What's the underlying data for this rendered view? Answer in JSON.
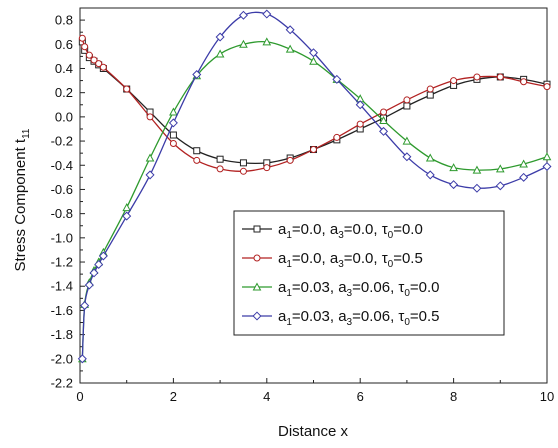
{
  "chart_data": {
    "type": "line",
    "xlabel": "Distance x",
    "ylabel": "Stress Component t",
    "ylabel_sub": "11",
    "xlim": [
      0,
      10
    ],
    "ylim": [
      -2.2,
      0.9
    ],
    "xticks": [
      0,
      2,
      4,
      6,
      8,
      10
    ],
    "xtick_labels": [
      "0",
      "2",
      "4",
      "6",
      "8",
      "10"
    ],
    "yticks": [
      0.8,
      0.6,
      0.4,
      0.2,
      0.0,
      -0.2,
      -0.4,
      -0.6,
      -0.8,
      -1.0,
      -1.2,
      -1.4,
      -1.6,
      -1.8,
      -2.0,
      -2.2
    ],
    "ytick_labels": [
      "0.8",
      "0.6",
      "0.4",
      "0.2",
      "0.0",
      "-0.2",
      "-0.4",
      "-0.6",
      "-0.8",
      "-1.0",
      "-1.2",
      "-1.4",
      "-1.6",
      "-1.8",
      "-2.0",
      "-2.2"
    ],
    "grid": false,
    "legend_position": "bottom-right",
    "series": [
      {
        "name": "a1=0.0, a3=0.0, τ0=0.0",
        "legend": {
          "a1": "0.0",
          "a3": "0.0",
          "t0": "0.0"
        },
        "color": "#222222",
        "marker": "square",
        "x": [
          0.05,
          0.1,
          0.2,
          0.3,
          0.4,
          0.5,
          1.0,
          1.5,
          2.0,
          2.5,
          3.0,
          3.5,
          4.0,
          4.5,
          5.0,
          5.5,
          6.0,
          6.5,
          7.0,
          7.5,
          8.0,
          8.5,
          9.0,
          9.5,
          10.0
        ],
        "y": [
          0.62,
          0.55,
          0.49,
          0.46,
          0.43,
          0.4,
          0.23,
          0.04,
          -0.15,
          -0.28,
          -0.35,
          -0.38,
          -0.38,
          -0.34,
          -0.27,
          -0.19,
          -0.1,
          -0.01,
          0.09,
          0.18,
          0.26,
          0.31,
          0.33,
          0.31,
          0.27
        ]
      },
      {
        "name": "a1=0.0, a3=0.0, τ0=0.5",
        "legend": {
          "a1": "0.0",
          "a3": "0.0",
          "t0": "0.5"
        },
        "color": "#b22222",
        "marker": "circle",
        "x": [
          0.05,
          0.1,
          0.2,
          0.3,
          0.4,
          0.5,
          1.0,
          1.5,
          2.0,
          2.5,
          3.0,
          3.5,
          4.0,
          4.5,
          5.0,
          5.5,
          6.0,
          6.5,
          7.0,
          7.5,
          8.0,
          8.5,
          9.0,
          9.5,
          10.0
        ],
        "y": [
          0.65,
          0.58,
          0.51,
          0.47,
          0.44,
          0.41,
          0.23,
          0.0,
          -0.22,
          -0.36,
          -0.43,
          -0.45,
          -0.42,
          -0.36,
          -0.27,
          -0.17,
          -0.06,
          0.04,
          0.14,
          0.23,
          0.3,
          0.33,
          0.33,
          0.29,
          0.25
        ]
      },
      {
        "name": "a1=0.03, a3=0.06, τ0=0.0",
        "legend": {
          "a1": "0.03",
          "a3": "0.06",
          "t0": "0.0"
        },
        "color": "#2e9a2e",
        "marker": "triangle",
        "x": [
          0.05,
          0.1,
          0.2,
          0.3,
          0.4,
          0.5,
          1.0,
          1.5,
          2.0,
          2.5,
          3.0,
          3.5,
          4.0,
          4.5,
          5.0,
          5.5,
          6.0,
          6.5,
          7.0,
          7.5,
          8.0,
          8.5,
          9.0,
          9.5,
          10.0
        ],
        "y": [
          -2.0,
          -1.55,
          -1.37,
          -1.27,
          -1.2,
          -1.12,
          -0.75,
          -0.34,
          0.04,
          0.34,
          0.52,
          0.6,
          0.62,
          0.56,
          0.46,
          0.31,
          0.15,
          -0.03,
          -0.2,
          -0.34,
          -0.42,
          -0.44,
          -0.43,
          -0.39,
          -0.33
        ]
      },
      {
        "name": "a1=0.03, a3=0.06, τ0=0.5",
        "legend": {
          "a1": "0.03",
          "a3": "0.06",
          "t0": "0.5"
        },
        "color": "#3c3ca8",
        "marker": "diamond",
        "x": [
          0.05,
          0.1,
          0.2,
          0.3,
          0.4,
          0.5,
          1.0,
          1.5,
          2.0,
          2.5,
          3.0,
          3.5,
          4.0,
          4.5,
          5.0,
          5.5,
          6.0,
          6.5,
          7.0,
          7.5,
          8.0,
          8.5,
          9.0,
          9.5,
          10.0
        ],
        "y": [
          -2.0,
          -1.56,
          -1.39,
          -1.29,
          -1.22,
          -1.15,
          -0.82,
          -0.48,
          -0.05,
          0.35,
          0.66,
          0.84,
          0.85,
          0.72,
          0.53,
          0.31,
          0.1,
          -0.12,
          -0.33,
          -0.48,
          -0.56,
          -0.59,
          -0.57,
          -0.5,
          -0.41
        ]
      }
    ]
  }
}
